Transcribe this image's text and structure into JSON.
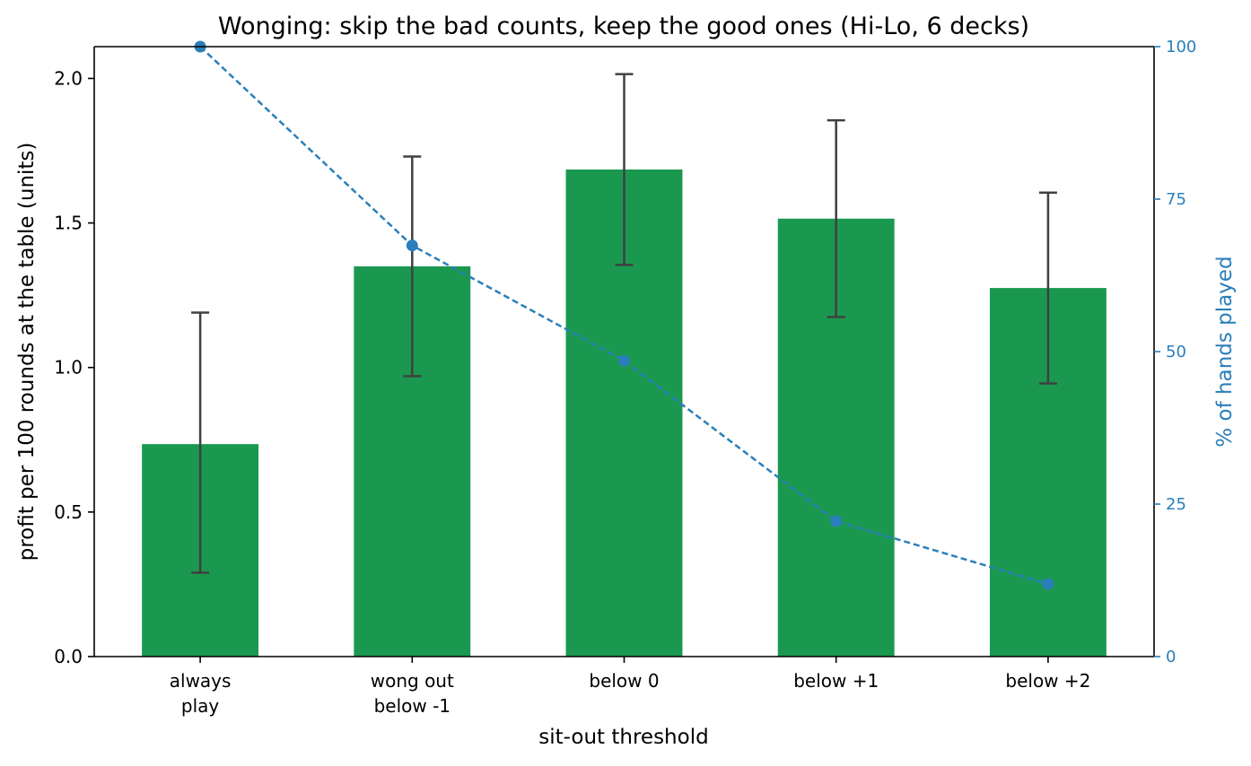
{
  "chart_data": {
    "type": "bar",
    "title": "Wonging: skip the bad counts, keep the good ones (Hi-Lo, 6 decks)",
    "xlabel": "sit-out threshold",
    "ylabel": "profit per 100 rounds at the table (units)",
    "y2label": "% of hands played",
    "categories": [
      [
        "always",
        "play"
      ],
      [
        "wong out",
        "below -1"
      ],
      [
        "below 0"
      ],
      [
        "below +1"
      ],
      [
        "below +2"
      ]
    ],
    "ylim": [
      0,
      2.11
    ],
    "y_ticks": [
      "0.0",
      "0.5",
      "1.0",
      "1.5",
      "2.0"
    ],
    "y2lim": [
      0,
      100
    ],
    "y2_ticks": [
      "0",
      "25",
      "50",
      "75",
      "100"
    ],
    "grid": false,
    "series": [
      {
        "kind": "bar",
        "axis": "left",
        "values": [
          0.735,
          1.35,
          1.685,
          1.515,
          1.275
        ],
        "error_low": [
          0.29,
          0.97,
          1.355,
          1.175,
          0.945
        ],
        "error_high": [
          1.19,
          1.73,
          2.015,
          1.855,
          1.605
        ],
        "color": "#1b9850",
        "error_color": "#404040"
      },
      {
        "kind": "line",
        "axis": "right",
        "style": "dashed",
        "marker": "circle",
        "values": [
          100,
          67.4,
          48.5,
          22.2,
          11.9
        ],
        "color": "#2a7fba"
      }
    ],
    "colors": {
      "axis": "#000000",
      "right_axis": "#2a7fba"
    }
  }
}
